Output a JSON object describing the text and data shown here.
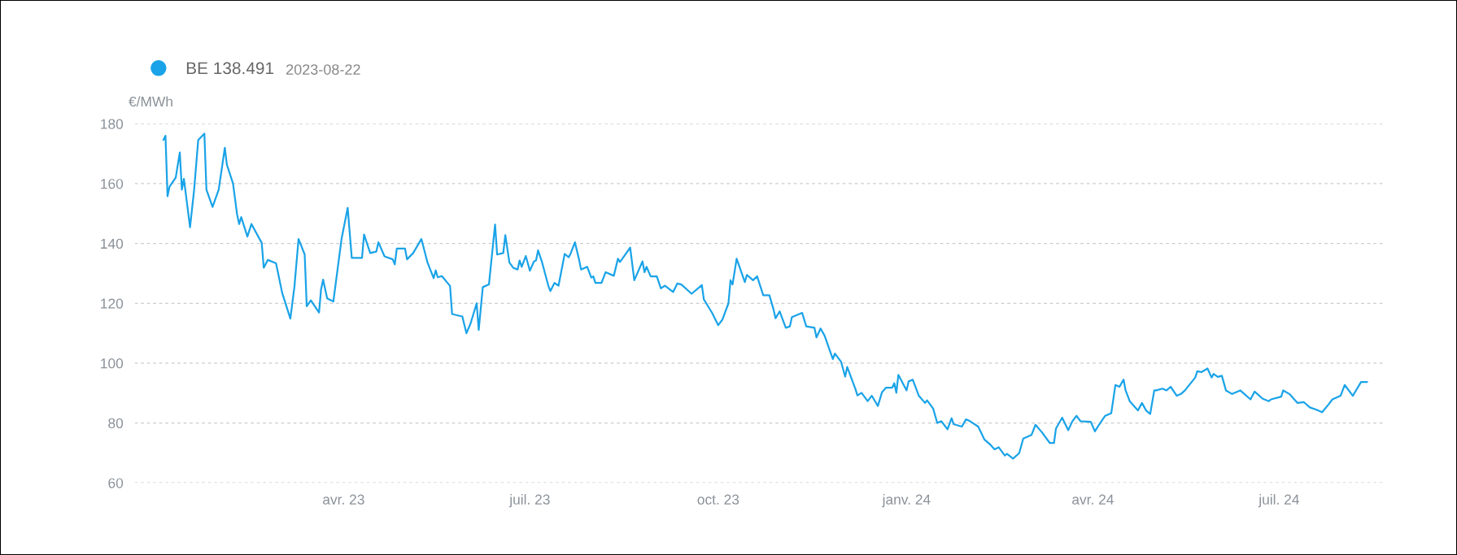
{
  "chart_data": {
    "type": "line",
    "ylabel": "€/MWh",
    "annotations": [
      "2023-08-22"
    ],
    "legend": "top left",
    "grid": "y",
    "line_style": "solid",
    "marker": "none",
    "xlim": [
      "2022-12-20",
      "2024-08-22"
    ],
    "xticks": [
      {
        "value": "2023-04-01",
        "label": "avr. 23"
      },
      {
        "value": "2023-07-01",
        "label": "juil. 23"
      },
      {
        "value": "2023-10-01",
        "label": "oct. 23"
      },
      {
        "value": "2024-01-01",
        "label": "janv. 24"
      },
      {
        "value": "2024-04-01",
        "label": "avr. 24"
      },
      {
        "value": "2024-07-01",
        "label": "juil. 24"
      }
    ],
    "ylim": [
      60,
      180
    ],
    "yticks": [
      60,
      80,
      100,
      120,
      140,
      160,
      180
    ],
    "series": [
      {
        "name": "BE 138.491",
        "color": "#1aa3e8",
        "x": [
          "2023-01-03",
          "2023-01-04",
          "2023-01-05",
          "2023-01-06",
          "2023-01-09",
          "2023-01-11",
          "2023-01-12",
          "2023-01-13",
          "2023-01-16",
          "2023-01-18",
          "2023-01-20",
          "2023-01-23",
          "2023-01-24",
          "2023-01-27",
          "2023-01-30",
          "2023-02-02",
          "2023-02-03",
          "2023-02-06",
          "2023-02-08",
          "2023-02-09",
          "2023-02-10",
          "2023-02-13",
          "2023-02-15",
          "2023-02-20",
          "2023-02-21",
          "2023-02-23",
          "2023-02-27",
          "2023-03-02",
          "2023-03-06",
          "2023-03-08",
          "2023-03-10",
          "2023-03-13",
          "2023-03-14",
          "2023-03-16",
          "2023-03-20",
          "2023-03-21",
          "2023-03-22",
          "2023-03-24",
          "2023-03-27",
          "2023-03-31",
          "2023-04-03",
          "2023-04-05",
          "2023-04-10",
          "2023-04-11",
          "2023-04-14",
          "2023-04-17",
          "2023-04-18",
          "2023-04-21",
          "2023-04-25",
          "2023-04-26",
          "2023-04-27",
          "2023-05-01",
          "2023-05-02",
          "2023-05-05",
          "2023-05-09",
          "2023-05-12",
          "2023-05-15",
          "2023-05-16",
          "2023-05-17",
          "2023-05-19",
          "2023-05-23",
          "2023-05-24",
          "2023-05-29",
          "2023-05-31",
          "2023-06-02",
          "2023-06-05",
          "2023-06-06",
          "2023-06-08",
          "2023-06-11",
          "2023-06-14",
          "2023-06-15",
          "2023-06-18",
          "2023-06-19",
          "2023-06-21",
          "2023-06-23",
          "2023-06-25",
          "2023-06-26",
          "2023-06-27",
          "2023-06-29",
          "2023-07-01",
          "2023-07-03",
          "2023-07-04",
          "2023-07-05",
          "2023-07-07",
          "2023-07-10",
          "2023-07-11",
          "2023-07-13",
          "2023-07-15",
          "2023-07-18",
          "2023-07-20",
          "2023-07-21",
          "2023-07-23",
          "2023-07-25",
          "2023-07-26",
          "2023-07-29",
          "2023-07-31",
          "2023-08-01",
          "2023-08-02",
          "2023-08-05",
          "2023-08-07",
          "2023-08-11",
          "2023-08-13",
          "2023-08-14",
          "2023-08-19",
          "2023-08-21",
          "2023-08-25",
          "2023-08-26",
          "2023-08-27",
          "2023-08-29",
          "2023-09-01",
          "2023-09-03",
          "2023-09-05",
          "2023-09-09",
          "2023-09-11",
          "2023-09-13",
          "2023-09-18",
          "2023-09-23",
          "2023-09-24",
          "2023-09-28",
          "2023-10-01",
          "2023-10-03",
          "2023-10-06",
          "2023-10-07",
          "2023-10-08",
          "2023-10-10",
          "2023-10-14",
          "2023-10-15",
          "2023-10-18",
          "2023-10-20",
          "2023-10-23",
          "2023-10-26",
          "2023-10-28",
          "2023-10-29",
          "2023-10-31",
          "2023-11-03",
          "2023-11-05",
          "2023-11-06",
          "2023-11-11",
          "2023-11-13",
          "2023-11-17",
          "2023-11-18",
          "2023-11-20",
          "2023-11-22",
          "2023-11-26",
          "2023-11-27",
          "2023-11-30",
          "2023-12-02",
          "2023-12-03",
          "2023-12-07",
          "2023-12-08",
          "2023-12-10",
          "2023-12-13",
          "2023-12-15",
          "2023-12-18",
          "2023-12-20",
          "2023-12-22",
          "2023-12-25",
          "2023-12-26",
          "2023-12-27",
          "2023-12-28",
          "2024-01-01",
          "2024-01-02",
          "2024-01-04",
          "2024-01-07",
          "2024-01-10",
          "2024-01-11",
          "2024-01-14",
          "2024-01-16",
          "2024-01-18",
          "2024-01-21",
          "2024-01-23",
          "2024-01-24",
          "2024-01-28",
          "2024-01-30",
          "2024-02-01",
          "2024-02-05",
          "2024-02-08",
          "2024-02-11",
          "2024-02-13",
          "2024-02-15",
          "2024-02-18",
          "2024-02-19",
          "2024-02-22",
          "2024-02-25",
          "2024-02-27",
          "2024-03-02",
          "2024-03-04",
          "2024-03-07",
          "2024-03-11",
          "2024-03-13",
          "2024-03-14",
          "2024-03-17",
          "2024-03-20",
          "2024-03-22",
          "2024-03-24",
          "2024-03-26",
          "2024-03-31",
          "2024-04-02",
          "2024-04-04",
          "2024-04-07",
          "2024-04-10",
          "2024-04-12",
          "2024-04-14",
          "2024-04-16",
          "2024-04-17",
          "2024-04-19",
          "2024-04-23",
          "2024-04-25",
          "2024-04-27",
          "2024-04-29",
          "2024-05-01",
          "2024-05-02",
          "2024-05-05",
          "2024-05-07",
          "2024-05-09",
          "2024-05-12",
          "2024-05-14",
          "2024-05-16",
          "2024-05-21",
          "2024-05-22",
          "2024-05-24",
          "2024-05-27",
          "2024-05-29",
          "2024-05-30",
          "2024-06-01",
          "2024-06-03",
          "2024-06-05",
          "2024-06-08",
          "2024-06-12",
          "2024-06-17",
          "2024-06-19",
          "2024-06-23",
          "2024-06-26",
          "2024-06-27",
          "2024-07-02",
          "2024-07-03",
          "2024-07-06",
          "2024-07-10",
          "2024-07-13",
          "2024-07-16",
          "2024-07-19",
          "2024-07-22",
          "2024-07-25",
          "2024-07-27",
          "2024-07-31",
          "2024-08-02",
          "2024-08-06",
          "2024-08-10",
          "2024-08-13"
        ],
        "values": [
          174.6,
          176,
          155.8,
          159,
          162,
          170.4,
          158,
          161.6,
          145.4,
          158,
          174.6,
          176.7,
          158,
          152.2,
          158,
          172,
          166.3,
          160,
          149.6,
          146.5,
          148.8,
          142.3,
          146.5,
          140.2,
          131.9,
          134.5,
          133.4,
          123.5,
          114.9,
          125.6,
          141.5,
          136.3,
          119,
          121,
          116.9,
          124.7,
          127.9,
          121.6,
          120.6,
          141.5,
          151.9,
          135.2,
          135.2,
          143,
          136.8,
          137.3,
          140.4,
          135.7,
          134.7,
          133,
          138.3,
          138.3,
          134.7,
          136.8,
          141.5,
          133.6,
          128.4,
          131,
          128.7,
          129.1,
          125.8,
          116.4,
          115.6,
          110,
          113.2,
          120,
          111.1,
          125.4,
          126.3,
          146.3,
          136.3,
          136.8,
          142.8,
          133.6,
          131.8,
          131.3,
          134.3,
          132.2,
          135.8,
          130.9,
          134,
          134.3,
          137.7,
          133.6,
          125.9,
          124.1,
          126.8,
          125.9,
          136.5,
          135.4,
          136.8,
          140.4,
          134.7,
          131.3,
          132.2,
          128.6,
          129,
          126.8,
          126.8,
          130.4,
          129.2,
          134.9,
          133.8,
          138.6,
          127.7,
          134,
          130.4,
          132.2,
          129,
          129,
          125,
          125.9,
          123.8,
          126.6,
          126.3,
          123.2,
          126.1,
          121.3,
          116.8,
          112.7,
          114.5,
          120,
          127.7,
          126.3,
          134.9,
          127.1,
          129.5,
          127.7,
          129,
          122.7,
          122.7,
          118,
          115,
          117.3,
          111.8,
          112.3,
          115.4,
          116.8,
          112.3,
          111.8,
          108.6,
          111.6,
          109.1,
          101.4,
          103.2,
          100.5,
          95.5,
          98.7,
          91.4,
          89.2,
          90.1,
          87.3,
          89.1,
          85.7,
          90.3,
          91.8,
          91.8,
          93.3,
          90.1,
          96.1,
          90.9,
          93.9,
          94.5,
          89.1,
          86.7,
          87.6,
          84.8,
          80,
          80.6,
          77.9,
          81.6,
          79.6,
          78.8,
          81.2,
          80.6,
          78.8,
          74.5,
          72.7,
          71.2,
          71.9,
          69.1,
          69.7,
          68.1,
          69.9,
          74.8,
          76,
          79.4,
          77,
          73.3,
          73.3,
          78.2,
          81.8,
          77.6,
          80.6,
          82.4,
          80.6,
          80.4,
          77.2,
          79.4,
          82.4,
          83.3,
          92.7,
          92.1,
          94.5,
          90.9,
          87.3,
          84.2,
          86.7,
          84.2,
          83,
          90.9,
          90.9,
          91.5,
          90.9,
          92.1,
          89.1,
          89.7,
          90.9,
          95.2,
          97.3,
          97,
          98.2,
          95.2,
          96.4,
          95.4,
          95.8,
          90.9,
          89.7,
          90.9,
          87.9,
          90.5,
          88.1,
          87.3,
          87.9,
          88.8,
          90.9,
          89.7,
          86.7,
          87,
          85.2,
          84.5,
          83.6,
          86.1,
          87.9,
          89.1,
          92.7,
          89.1,
          93.7,
          93.7
        ]
      }
    ]
  }
}
